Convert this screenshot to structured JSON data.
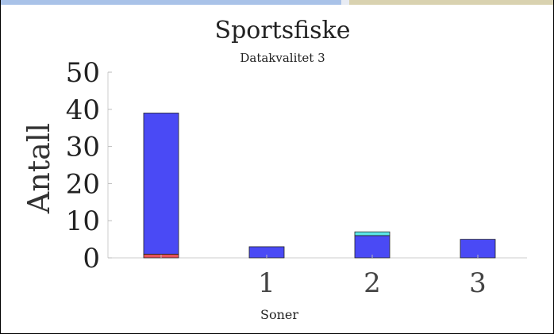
{
  "chart_data": {
    "type": "bar",
    "stacked": true,
    "title": "Sportsfiske",
    "subtitle": "Datakvalitet 3",
    "xlabel": "Soner",
    "ylabel": "Antall",
    "ylim": [
      0,
      50
    ],
    "yticks": [
      "0",
      "10",
      "20",
      "30",
      "40",
      "50"
    ],
    "categories": [
      "",
      "1",
      "2",
      "3"
    ],
    "series": [
      {
        "color": "#e8545a",
        "values": [
          1,
          0,
          0,
          0
        ]
      },
      {
        "color": "#4a4af5",
        "values": [
          38,
          3,
          6,
          5
        ]
      },
      {
        "color": "#5ce8e8",
        "values": [
          0,
          0,
          1,
          0
        ]
      }
    ],
    "grid": false,
    "legend": "none"
  }
}
